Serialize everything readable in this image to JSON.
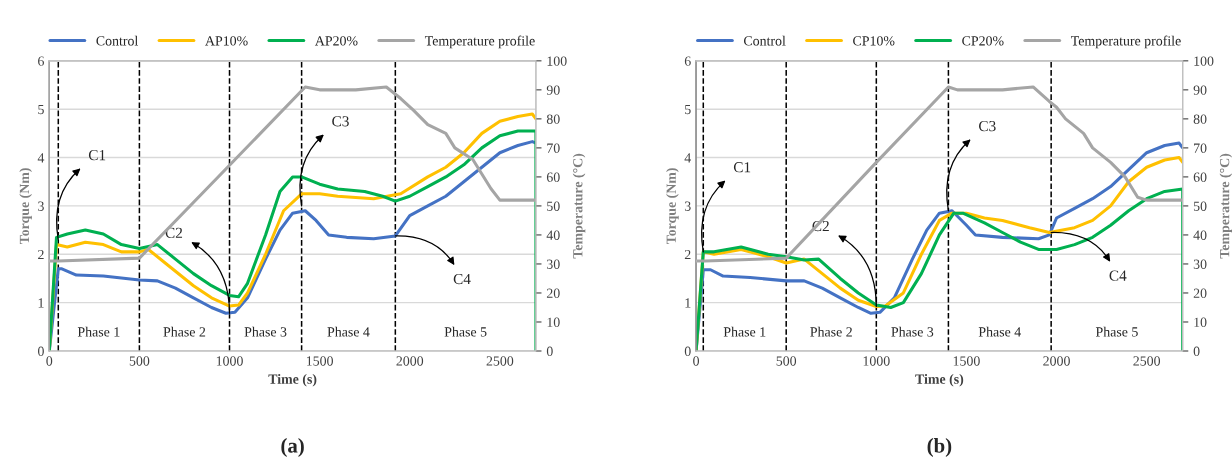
{
  "chart_data": [
    {
      "type": "line",
      "title": "(a)",
      "xlabel": "Time (s)",
      "ylabel": "Torque (Nm)",
      "y2label": "Temperature (°C)",
      "xlim": [
        0,
        2700
      ],
      "xticks": [
        0,
        500,
        1000,
        1500,
        2000,
        2500
      ],
      "ylim": [
        0,
        6
      ],
      "yticks": [
        0,
        1,
        2,
        3,
        4,
        5,
        6
      ],
      "y2lim": [
        0,
        100
      ],
      "y2ticks": [
        0,
        10,
        20,
        30,
        40,
        50,
        60,
        70,
        80,
        90,
        100
      ],
      "grid": "y",
      "legend": "top",
      "marker": "none",
      "line_style": "solid",
      "series": [
        {
          "name": "Control",
          "color": "#4472c4",
          "x": [
            0,
            50,
            70,
            150,
            300,
            500,
            600,
            700,
            800,
            900,
            980,
            1030,
            1100,
            1200,
            1280,
            1350,
            1420,
            1480,
            1550,
            1650,
            1800,
            1920,
            2000,
            2100,
            2200,
            2300,
            2400,
            2500,
            2600,
            2680,
            2700
          ],
          "values": [
            0,
            1.7,
            1.7,
            1.57,
            1.55,
            1.47,
            1.45,
            1.3,
            1.1,
            0.9,
            0.78,
            0.8,
            1.1,
            1.9,
            2.5,
            2.85,
            2.9,
            2.7,
            2.4,
            2.35,
            2.32,
            2.38,
            2.8,
            3.0,
            3.2,
            3.5,
            3.8,
            4.1,
            4.25,
            4.33,
            4.3
          ]
        },
        {
          "name": "AP10%",
          "color": "#ffc000",
          "x": [
            0,
            40,
            100,
            200,
            300,
            400,
            500,
            550,
            650,
            800,
            900,
            1000,
            1050,
            1100,
            1200,
            1300,
            1400,
            1500,
            1600,
            1800,
            1950,
            2100,
            2200,
            2300,
            2400,
            2500,
            2600,
            2680,
            2700
          ],
          "values": [
            0,
            2.2,
            2.15,
            2.25,
            2.2,
            2.05,
            2.05,
            2.1,
            1.8,
            1.35,
            1.1,
            0.93,
            0.95,
            1.2,
            2.0,
            2.9,
            3.25,
            3.25,
            3.2,
            3.15,
            3.25,
            3.6,
            3.8,
            4.1,
            4.5,
            4.75,
            4.85,
            4.9,
            4.8
          ]
        },
        {
          "name": "AP20%",
          "color": "#00b050",
          "x": [
            0,
            40,
            100,
            200,
            300,
            400,
            500,
            600,
            700,
            800,
            900,
            1000,
            1050,
            1100,
            1200,
            1280,
            1350,
            1400,
            1500,
            1600,
            1750,
            1850,
            1920,
            2000,
            2100,
            2200,
            2300,
            2400,
            2500,
            2600,
            2700,
            2700
          ],
          "values": [
            0,
            2.35,
            2.42,
            2.5,
            2.42,
            2.2,
            2.12,
            2.2,
            1.9,
            1.6,
            1.35,
            1.15,
            1.12,
            1.4,
            2.4,
            3.3,
            3.6,
            3.6,
            3.45,
            3.35,
            3.3,
            3.2,
            3.1,
            3.2,
            3.4,
            3.6,
            3.85,
            4.2,
            4.45,
            4.55,
            4.55,
            0
          ]
        },
        {
          "name": "Temperature profile",
          "color": "#a5a5a5",
          "axis": "y2",
          "x": [
            0,
            50,
            500,
            1000,
            1420,
            1500,
            1700,
            1870,
            1950,
            2020,
            2100,
            2200,
            2250,
            2350,
            2450,
            2500,
            2700
          ],
          "values": [
            31,
            31,
            32,
            64,
            91,
            90,
            90,
            91,
            87,
            83,
            78,
            75,
            70,
            66,
            56,
            52,
            52
          ]
        }
      ],
      "ref_lines": [
        {
          "axis": "x",
          "value": 50,
          "color": "#000000",
          "line_style": "dashed"
        },
        {
          "axis": "x",
          "value": 500,
          "color": "#000000",
          "line_style": "dashed"
        },
        {
          "axis": "x",
          "value": 1000,
          "color": "#000000",
          "line_style": "dashed"
        },
        {
          "axis": "x",
          "value": 1400,
          "color": "#000000",
          "line_style": "dashed"
        },
        {
          "axis": "x",
          "value": 1920,
          "color": "#000000",
          "line_style": "dashed"
        }
      ],
      "annotations": [
        {
          "text": "C1",
          "x": 50,
          "y": 2.3
        },
        {
          "text": "C2",
          "x": 1000,
          "y": 0.78
        },
        {
          "text": "C3",
          "x": 1400,
          "y": 3.0
        },
        {
          "text": "C4",
          "x": 1920,
          "y": 2.38
        },
        "Phase 1",
        "Phase 2",
        "Phase 3",
        "Phase 4",
        "Phase 5"
      ]
    },
    {
      "type": "line",
      "title": "(b)",
      "xlabel": "Time (s)",
      "ylabel": "Torque (Nm)",
      "y2label": "Temperature (°C)",
      "xlim": [
        0,
        2700
      ],
      "xticks": [
        0,
        500,
        1000,
        1500,
        2000,
        2500
      ],
      "ylim": [
        0,
        6
      ],
      "yticks": [
        0,
        1,
        2,
        3,
        4,
        5,
        6
      ],
      "y2lim": [
        0,
        100
      ],
      "y2ticks": [
        0,
        10,
        20,
        30,
        40,
        50,
        60,
        70,
        80,
        90,
        100
      ],
      "grid": "y",
      "legend": "top",
      "marker": "none",
      "line_style": "solid",
      "series": [
        {
          "name": "Control",
          "color": "#4472c4",
          "x": [
            0,
            40,
            80,
            150,
            300,
            500,
            600,
            700,
            800,
            900,
            970,
            1020,
            1100,
            1200,
            1280,
            1350,
            1420,
            1500,
            1550,
            1700,
            1900,
            1960,
            2000,
            2100,
            2200,
            2300,
            2400,
            2500,
            2600,
            2680,
            2700
          ],
          "values": [
            0,
            1.68,
            1.68,
            1.55,
            1.52,
            1.45,
            1.45,
            1.3,
            1.1,
            0.9,
            0.78,
            0.8,
            1.1,
            1.9,
            2.5,
            2.85,
            2.9,
            2.6,
            2.4,
            2.35,
            2.32,
            2.4,
            2.75,
            2.95,
            3.15,
            3.4,
            3.75,
            4.1,
            4.25,
            4.3,
            4.2
          ]
        },
        {
          "name": "CP10%",
          "color": "#ffc000",
          "x": [
            0,
            40,
            100,
            250,
            400,
            500,
            600,
            700,
            800,
            900,
            1000,
            1050,
            1150,
            1250,
            1350,
            1420,
            1500,
            1600,
            1700,
            1850,
            1960,
            2100,
            2200,
            2300,
            2400,
            2500,
            2600,
            2680,
            2700
          ],
          "values": [
            0,
            2.05,
            2.0,
            2.1,
            1.95,
            1.82,
            1.9,
            1.6,
            1.3,
            1.05,
            0.92,
            0.93,
            1.2,
            2.0,
            2.7,
            2.85,
            2.85,
            2.75,
            2.7,
            2.55,
            2.45,
            2.55,
            2.7,
            3.0,
            3.5,
            3.8,
            3.95,
            4.0,
            3.9
          ]
        },
        {
          "name": "CP20%",
          "color": "#00b050",
          "x": [
            0,
            40,
            100,
            250,
            400,
            500,
            600,
            680,
            800,
            900,
            1000,
            1080,
            1150,
            1250,
            1350,
            1430,
            1480,
            1600,
            1700,
            1800,
            1900,
            2000,
            2100,
            2200,
            2300,
            2400,
            2500,
            2600,
            2700,
            2700
          ],
          "values": [
            0,
            2.05,
            2.05,
            2.15,
            2.0,
            1.95,
            1.88,
            1.9,
            1.5,
            1.2,
            0.95,
            0.9,
            1.0,
            1.6,
            2.4,
            2.85,
            2.85,
            2.65,
            2.45,
            2.25,
            2.1,
            2.1,
            2.2,
            2.35,
            2.6,
            2.9,
            3.15,
            3.3,
            3.35,
            0
          ]
        },
        {
          "name": "Temperature profile",
          "color": "#a5a5a5",
          "axis": "y2",
          "x": [
            0,
            50,
            500,
            1000,
            1400,
            1450,
            1700,
            1870,
            1960,
            2000,
            2050,
            2150,
            2200,
            2300,
            2380,
            2450,
            2500,
            2700
          ],
          "values": [
            31,
            31,
            32,
            65,
            91,
            90,
            90,
            91,
            86,
            84,
            80,
            75,
            70,
            65,
            60,
            53,
            52,
            52
          ]
        }
      ],
      "ref_lines": [
        {
          "axis": "x",
          "value": 40,
          "color": "#000000",
          "line_style": "dashed"
        },
        {
          "axis": "x",
          "value": 500,
          "color": "#000000",
          "line_style": "dashed"
        },
        {
          "axis": "x",
          "value": 1000,
          "color": "#000000",
          "line_style": "dashed"
        },
        {
          "axis": "x",
          "value": 1400,
          "color": "#000000",
          "line_style": "dashed"
        },
        {
          "axis": "x",
          "value": 1970,
          "color": "#000000",
          "line_style": "dashed"
        }
      ],
      "annotations": [
        {
          "text": "C1",
          "x": 40,
          "y": 2.05
        },
        {
          "text": "C2",
          "x": 1000,
          "y": 0.92
        },
        {
          "text": "C3",
          "x": 1400,
          "y": 2.9
        },
        {
          "text": "C4",
          "x": 1970,
          "y": 2.45
        },
        "Phase 1",
        "Phase 2",
        "Phase 3",
        "Phase 4",
        "Phase 5"
      ]
    }
  ]
}
